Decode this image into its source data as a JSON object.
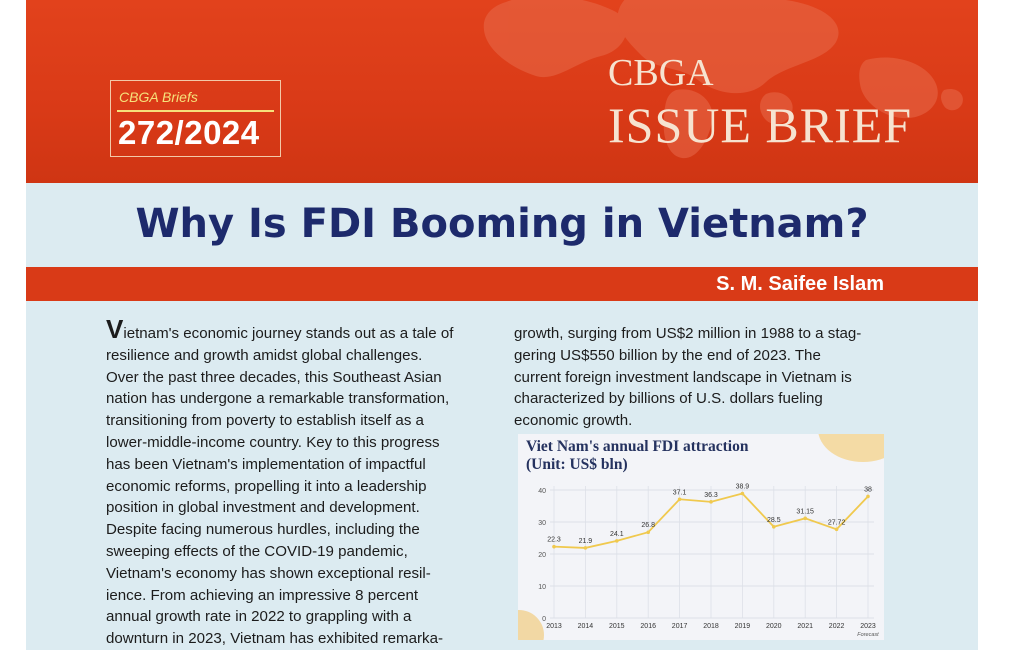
{
  "header": {
    "series_label": "CBGA Briefs",
    "brief_number": "272/2024",
    "org": "CBGA",
    "publication_type": "ISSUE BRIEF"
  },
  "article": {
    "title": "Why Is FDI Booming in Vietnam?",
    "author": "S. M. Saifee Islam",
    "dropcap": "V",
    "left_lines": [
      "ietnam's economic journey stands out as a tale of",
      "resilience and growth amidst global challenges.",
      "Over the past three decades, this Southeast Asian",
      "nation has undergone a remarkable transformation,",
      "transitioning from poverty to establish itself as a",
      "lower-middle-income country. Key to this progress",
      "has been Vietnam's implementation of impactful",
      "economic reforms, propelling it into a leadership",
      "position in global investment and development.",
      "Despite facing numerous hurdles, including the",
      "sweeping effects of the COVID-19 pandemic,",
      "Vietnam's economy has shown exceptional resil-",
      "ience. From achieving an impressive 8 percent",
      "annual growth rate in 2022 to grappling with a",
      "downturn in 2023, Vietnam has exhibited remarka-"
    ],
    "right_lines": [
      "growth, surging from US$2 million in 1988 to a stag-",
      "gering US$550 billion by the end of 2023. The",
      "current foreign investment landscape in Vietnam is",
      "characterized by billions of U.S. dollars fueling",
      "economic growth."
    ]
  },
  "chart_data": {
    "type": "line",
    "title": "Viet Nam's annual FDI attraction",
    "subtitle": "(Unit: US$ bln)",
    "x": [
      "2013",
      "2014",
      "2015",
      "2016",
      "2017",
      "2018",
      "2019",
      "2020",
      "2021",
      "2022",
      "2023"
    ],
    "values": [
      22.3,
      21.9,
      24.1,
      26.8,
      37.1,
      36.3,
      38.9,
      28.5,
      31.15,
      27.72,
      38
    ],
    "data_labels": [
      "22.3",
      "21.9",
      "24.1",
      "26.8",
      "37.1",
      "36.3",
      "38.9",
      "28.5",
      "31.15",
      "27.72",
      "38"
    ],
    "y_ticks": [
      "0",
      "10",
      "20",
      "30",
      "40"
    ],
    "ylim": [
      0,
      40
    ],
    "x_note": "Forecast",
    "grid": true,
    "line_color": "#f0c94e"
  }
}
